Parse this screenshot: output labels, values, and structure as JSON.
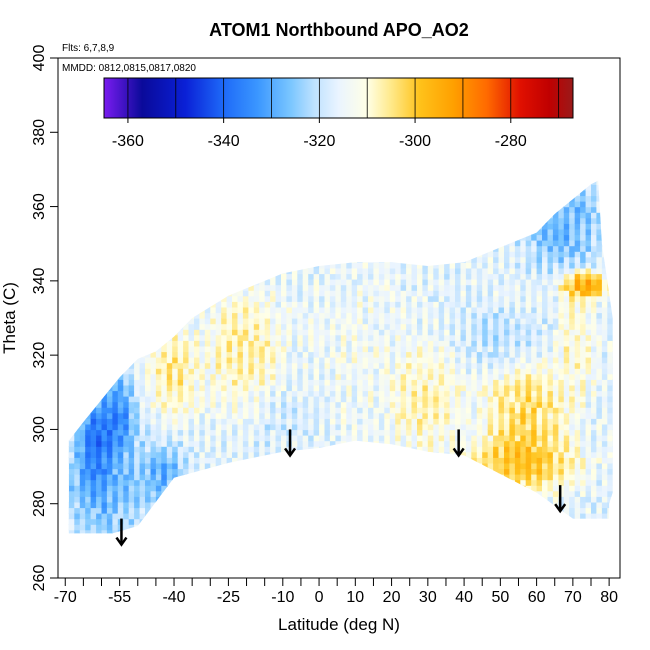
{
  "chart_data": {
    "type": "heatmap",
    "title": "ATOM1 Northbound APO_AO2",
    "annotations": {
      "flights": "Flts: 6,7,8,9",
      "dates": "MMDD: 0812,0815,0817,0820"
    },
    "xlabel": "Latitude (deg N)",
    "ylabel": "Theta (C)",
    "xlim": [
      -72,
      83
    ],
    "ylim": [
      260,
      400
    ],
    "x_tick_labels": [
      {
        "value": -70,
        "label": "-70"
      },
      {
        "value": -55,
        "label": "-55"
      },
      {
        "value": -40,
        "label": "-40"
      },
      {
        "value": -25,
        "label": "-25"
      },
      {
        "value": -10,
        "label": "-10"
      },
      {
        "value": 0,
        "label": "0"
      },
      {
        "value": 10,
        "label": "10"
      },
      {
        "value": 20,
        "label": "20"
      },
      {
        "value": 30,
        "label": "30"
      },
      {
        "value": 40,
        "label": "40"
      },
      {
        "value": 50,
        "label": "50"
      },
      {
        "value": 60,
        "label": "60"
      },
      {
        "value": 70,
        "label": "70"
      },
      {
        "value": 80,
        "label": "80"
      }
    ],
    "x_minor_ticks": [
      -65,
      -60,
      -50,
      -45,
      -35,
      -30,
      -20,
      -15,
      -5,
      5,
      15,
      25,
      35,
      45,
      55,
      65,
      75
    ],
    "y_ticks": [
      260,
      280,
      300,
      320,
      340,
      360,
      380,
      400
    ],
    "colorbar": {
      "range": [
        -365,
        -267
      ],
      "ticks": [
        -360,
        -340,
        -320,
        -300,
        -280
      ],
      "tick_labels": [
        "-360",
        "-340",
        "-320",
        "-300",
        "-280"
      ],
      "stops": [
        {
          "value": -365,
          "color": "#7a1cf0"
        },
        {
          "value": -357,
          "color": "#0a0a9a"
        },
        {
          "value": -348,
          "color": "#0a20d6"
        },
        {
          "value": -340,
          "color": "#1e6af8"
        },
        {
          "value": -333,
          "color": "#3a96ff"
        },
        {
          "value": -326,
          "color": "#7ac6ff"
        },
        {
          "value": -321,
          "color": "#bfe2ff"
        },
        {
          "value": -316,
          "color": "#eaf4ff"
        },
        {
          "value": -310,
          "color": "#ffffe6"
        },
        {
          "value": -305,
          "color": "#ffe98a"
        },
        {
          "value": -299,
          "color": "#ffc21a"
        },
        {
          "value": -292,
          "color": "#ffa000"
        },
        {
          "value": -285,
          "color": "#ff6a00"
        },
        {
          "value": -278,
          "color": "#e01000"
        },
        {
          "value": -272,
          "color": "#c00000"
        },
        {
          "value": -267,
          "color": "#9a1a1a"
        }
      ]
    },
    "arrows": [
      {
        "lat": -54.5,
        "theta_top": 276,
        "theta_tip": 269
      },
      {
        "lat": -8,
        "theta_top": 300,
        "theta_tip": 293
      },
      {
        "lat": 38.5,
        "theta_top": 300,
        "theta_tip": 293
      },
      {
        "lat": 66.5,
        "theta_top": 285,
        "theta_tip": 278
      }
    ],
    "domain": {
      "bottom": [
        [
          -69,
          272
        ],
        [
          -57,
          272
        ],
        [
          -50,
          274
        ],
        [
          -40,
          287
        ],
        [
          -25,
          291
        ],
        [
          -10,
          294
        ],
        [
          0,
          295
        ],
        [
          10,
          297
        ],
        [
          20,
          296
        ],
        [
          30,
          294
        ],
        [
          40,
          293
        ],
        [
          50,
          288
        ],
        [
          60,
          283
        ],
        [
          70,
          276
        ],
        [
          80,
          276
        ],
        [
          80,
          280
        ],
        [
          81,
          283
        ],
        [
          81,
          310
        ]
      ],
      "top": [
        [
          -69,
          297
        ],
        [
          -65,
          302
        ],
        [
          -60,
          308
        ],
        [
          -55,
          314
        ],
        [
          -50,
          319
        ],
        [
          -45,
          321
        ],
        [
          -40,
          325
        ],
        [
          -35,
          330
        ],
        [
          -30,
          333
        ],
        [
          -25,
          336
        ],
        [
          -20,
          338
        ],
        [
          -15,
          340
        ],
        [
          -10,
          342
        ],
        [
          -5,
          343
        ],
        [
          0,
          344
        ],
        [
          10,
          345
        ],
        [
          20,
          345
        ],
        [
          30,
          344
        ],
        [
          40,
          345
        ],
        [
          50,
          349
        ],
        [
          60,
          353
        ],
        [
          65,
          358
        ],
        [
          70,
          362
        ],
        [
          75,
          366
        ],
        [
          77,
          367
        ],
        [
          78,
          350
        ],
        [
          81,
          330
        ]
      ]
    },
    "field_regions": [
      {
        "lat": [
          -69,
          -50
        ],
        "theta": [
          272,
          300
        ],
        "value": -335
      },
      {
        "lat": [
          -65,
          -58
        ],
        "theta": [
          285,
          305
        ],
        "value": -355
      },
      {
        "lat": [
          -60,
          -52
        ],
        "theta": [
          295,
          312
        ],
        "value": -348
      },
      {
        "lat": [
          -48,
          -38
        ],
        "theta": [
          280,
          295
        ],
        "value": -336
      },
      {
        "lat": [
          -45,
          -35
        ],
        "theta": [
          305,
          325
        ],
        "value": -300
      },
      {
        "lat": [
          -30,
          -12
        ],
        "theta": [
          308,
          335
        ],
        "value": -302
      },
      {
        "lat": [
          -20,
          0
        ],
        "theta": [
          296,
          310
        ],
        "value": -320
      },
      {
        "lat": [
          0,
          20
        ],
        "theta": [
          300,
          340
        ],
        "value": -312
      },
      {
        "lat": [
          20,
          38
        ],
        "theta": [
          296,
          320
        ],
        "value": -303
      },
      {
        "lat": [
          40,
          60
        ],
        "theta": [
          318,
          332
        ],
        "value": -323
      },
      {
        "lat": [
          45,
          68
        ],
        "theta": [
          285,
          298
        ],
        "value": -289
      },
      {
        "lat": [
          48,
          66
        ],
        "theta": [
          295,
          315
        ],
        "value": -296
      },
      {
        "lat": [
          58,
          76
        ],
        "theta": [
          345,
          365
        ],
        "value": -335
      },
      {
        "lat": [
          68,
          78
        ],
        "theta": [
          336,
          342
        ],
        "value": -278
      },
      {
        "lat": [
          66,
          75
        ],
        "theta": [
          310,
          335
        ],
        "value": -305
      }
    ]
  }
}
